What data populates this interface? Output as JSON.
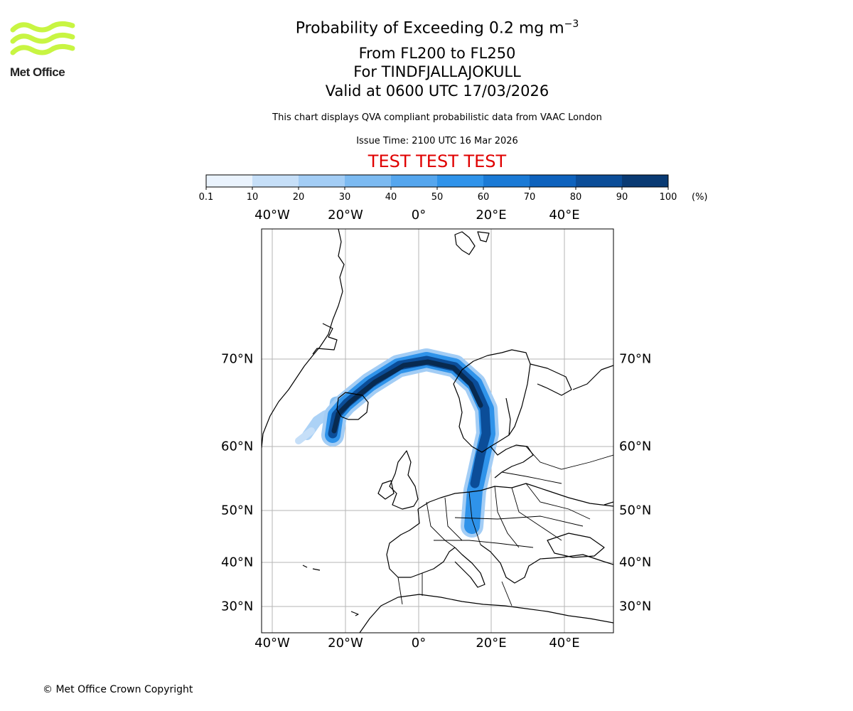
{
  "header": {
    "title_main": "Probability of Exceeding 0.2 mg m",
    "title_exp": "−3",
    "level_range": "From FL200 to FL250",
    "volcano": "For TINDFJALLAJOKULL",
    "valid_time": "Valid at 0600 UTC 17/03/2026",
    "description": "This chart displays QVA compliant probabilistic data from VAAC London",
    "issue_time": "Issue Time: 2100 UTC 16 Mar 2026",
    "test_banner": "TEST TEST TEST"
  },
  "logo": {
    "text": "Met Office",
    "color": "#c8f542"
  },
  "colorbar": {
    "unit": "(%)",
    "ticks": [
      "0.1",
      "10",
      "20",
      "30",
      "40",
      "50",
      "60",
      "70",
      "80",
      "90",
      "100"
    ],
    "colors": [
      "#eaf3fd",
      "#c6dff8",
      "#a3cdf5",
      "#7cbaf1",
      "#55a6ee",
      "#2f93ea",
      "#1a7ad6",
      "#0e62bd",
      "#0b4d98",
      "#093a73",
      "#082a50"
    ]
  },
  "map": {
    "lon_labels": [
      "40°W",
      "20°W",
      "0°",
      "20°E",
      "40°E"
    ],
    "lat_labels": [
      "70°N",
      "60°N",
      "50°N",
      "40°N",
      "30°N"
    ]
  },
  "footer": {
    "copyright": "© Met Office Crown Copyright"
  }
}
